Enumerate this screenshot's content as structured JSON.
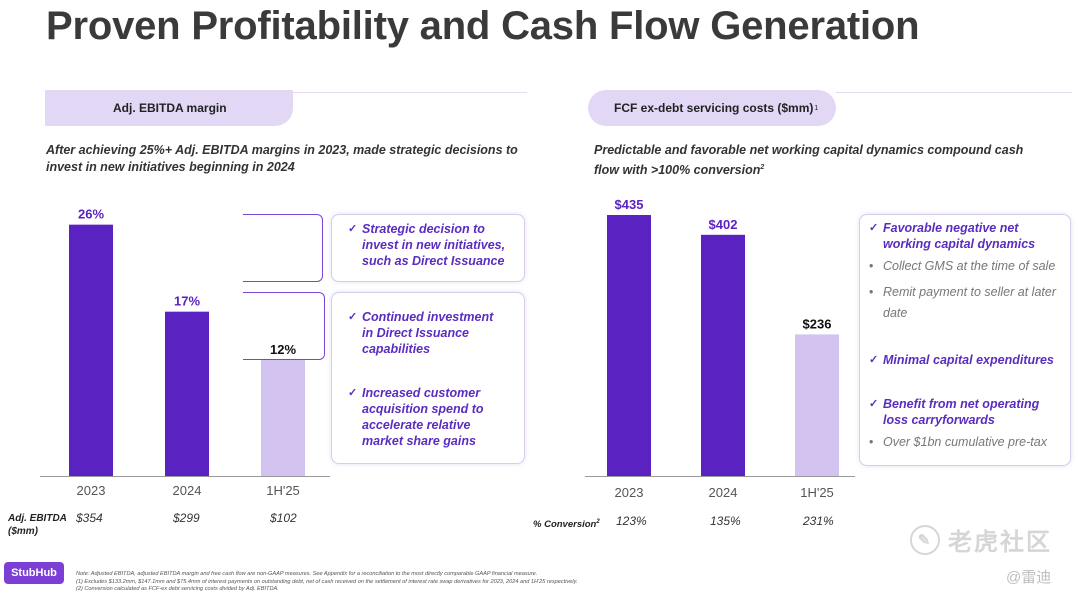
{
  "title": "Proven Profitability and Cash Flow Generation",
  "left": {
    "pill": "Adj. EBITDA margin",
    "subtitle": "After achieving 25%+ Adj. EBITDA margins in 2023, made strategic decisions to invest in new initiatives beginning in 2024",
    "callout1": [
      "Strategic decision to",
      "invest in new initiatives,",
      "such as Direct Issuance"
    ],
    "callout2a": [
      "Continued investment",
      "in Direct Issuance",
      "capabilities"
    ],
    "callout2b": [
      "Increased customer",
      "acquisition spend to",
      "accelerate relative",
      "market share gains"
    ],
    "row_label_1": "Adj. EBITDA",
    "row_label_2": "($mm)",
    "row_values": [
      "$354",
      "$299",
      "$102"
    ]
  },
  "right": {
    "pill": "FCF ex-debt servicing costs ($mm)",
    "pill_sup": "1",
    "subtitle": "Predictable and favorable net working capital dynamics compound cash flow with >100% conversion",
    "subtitle_sup": "2",
    "callout_h1": [
      "Favorable negative net",
      "working capital dynamics"
    ],
    "callout_g1": "Collect GMS at the time of sale",
    "callout_g2": [
      "Remit payment to seller at later",
      "date"
    ],
    "callout_h2": "Minimal capital expenditures",
    "callout_h3": [
      "Benefit from net operating",
      "loss carryforwards"
    ],
    "callout_g3": "Over $1bn cumulative pre-tax",
    "row_label": "% Conversion",
    "row_label_sup": "2",
    "row_values": [
      "123%",
      "135%",
      "231%"
    ]
  },
  "chart_data": [
    {
      "type": "bar",
      "title": "Adj. EBITDA margin",
      "categories": [
        "2023",
        "2024",
        "1H'25"
      ],
      "values": [
        26,
        17,
        12
      ],
      "data_labels": [
        "26%",
        "17%",
        "12%"
      ],
      "colors": [
        "#5b22c2",
        "#5b22c2",
        "#d2c3f0"
      ],
      "ylim": [
        0,
        30
      ]
    },
    {
      "type": "bar",
      "title": "FCF ex-debt servicing costs ($mm)",
      "categories": [
        "2023",
        "2024",
        "1H'25"
      ],
      "values": [
        435,
        402,
        236
      ],
      "data_labels": [
        "$435",
        "$402",
        "$236"
      ],
      "colors": [
        "#5b22c2",
        "#5b22c2",
        "#d2c3f0"
      ],
      "ylim": [
        0,
        450
      ]
    }
  ],
  "logo": "StubHub",
  "footnotes": [
    "Note: Adjusted EBITDA, adjusted EBITDA margin and free cash flow are non-GAAP measures.  See Appendix for a reconciliation to the most directly comparable GAAP financial measure.",
    "(1)    Excludes $133.2mm, $147.1mm and $75.4mm of interest payments on outstanding debt, net of cash received on the settlement of interest rate swap derivatives for 2023, 2024 and 1H'25 respectively.",
    "(2)    Conversion calculated as FCF-ex debt servicing costs divided by Adj. EBITDA."
  ],
  "watermark": "老虎社区",
  "watermark2": "@雷迪"
}
